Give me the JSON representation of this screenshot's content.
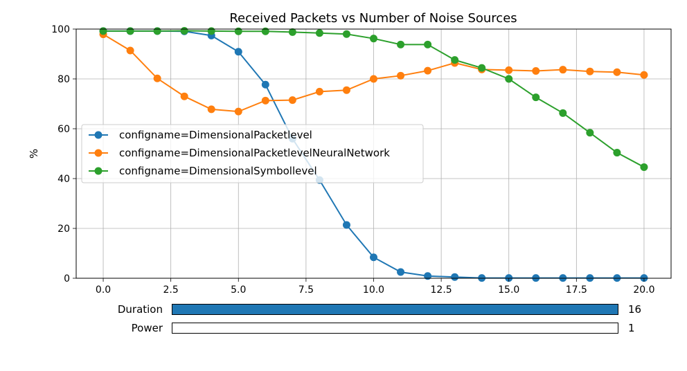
{
  "chart_data": {
    "type": "line",
    "title": "Received Packets vs Number of Noise Sources",
    "xlabel": "",
    "ylabel": "%",
    "xlim": [
      -1.0,
      21.0
    ],
    "ylim": [
      0,
      100
    ],
    "xticks": [
      "0.0",
      "2.5",
      "5.0",
      "7.5",
      "10.0",
      "12.5",
      "15.0",
      "17.5",
      "20.0"
    ],
    "yticks": [
      "0",
      "20",
      "40",
      "60",
      "80",
      "100"
    ],
    "grid": true,
    "legend_position": "center-left",
    "x": [
      0,
      1,
      2,
      3,
      4,
      5,
      6,
      7,
      8,
      9,
      10,
      11,
      12,
      13,
      14,
      15,
      16,
      17,
      18,
      19,
      20
    ],
    "series": [
      {
        "name": "configname=DimensionalPacketlevel",
        "color": "#1f77b4",
        "values": [
          99.2,
          99.2,
          99.2,
          99.1,
          97.4,
          90.9,
          77.7,
          56.0,
          39.4,
          21.4,
          8.4,
          2.5,
          0.9,
          0.5,
          0.1,
          0.1,
          0.1,
          0.1,
          0.1,
          0.1,
          0.1
        ]
      },
      {
        "name": "configname=DimensionalPacketlevelNeuralNetwork",
        "color": "#ff7f0e",
        "values": [
          97.9,
          91.4,
          80.2,
          73.0,
          67.8,
          66.9,
          71.3,
          71.5,
          74.9,
          75.5,
          80.0,
          81.3,
          83.3,
          86.4,
          83.8,
          83.5,
          83.2,
          83.7,
          83.0,
          82.7,
          81.6
        ]
      },
      {
        "name": "configname=DimensionalSymbollevel",
        "color": "#2ca02c",
        "values": [
          99.2,
          99.2,
          99.2,
          99.3,
          99.2,
          99.1,
          99.1,
          98.8,
          98.4,
          98.0,
          96.2,
          93.8,
          93.8,
          87.6,
          84.4,
          80.0,
          72.6,
          66.3,
          58.4,
          50.4,
          44.6
        ]
      }
    ]
  },
  "controls": {
    "duration": {
      "label": "Duration",
      "value": "16",
      "fill": 1.0,
      "color": "#1f77b4"
    },
    "power": {
      "label": "Power",
      "value": "1",
      "fill": 0.0,
      "color": "#1f77b4"
    }
  }
}
